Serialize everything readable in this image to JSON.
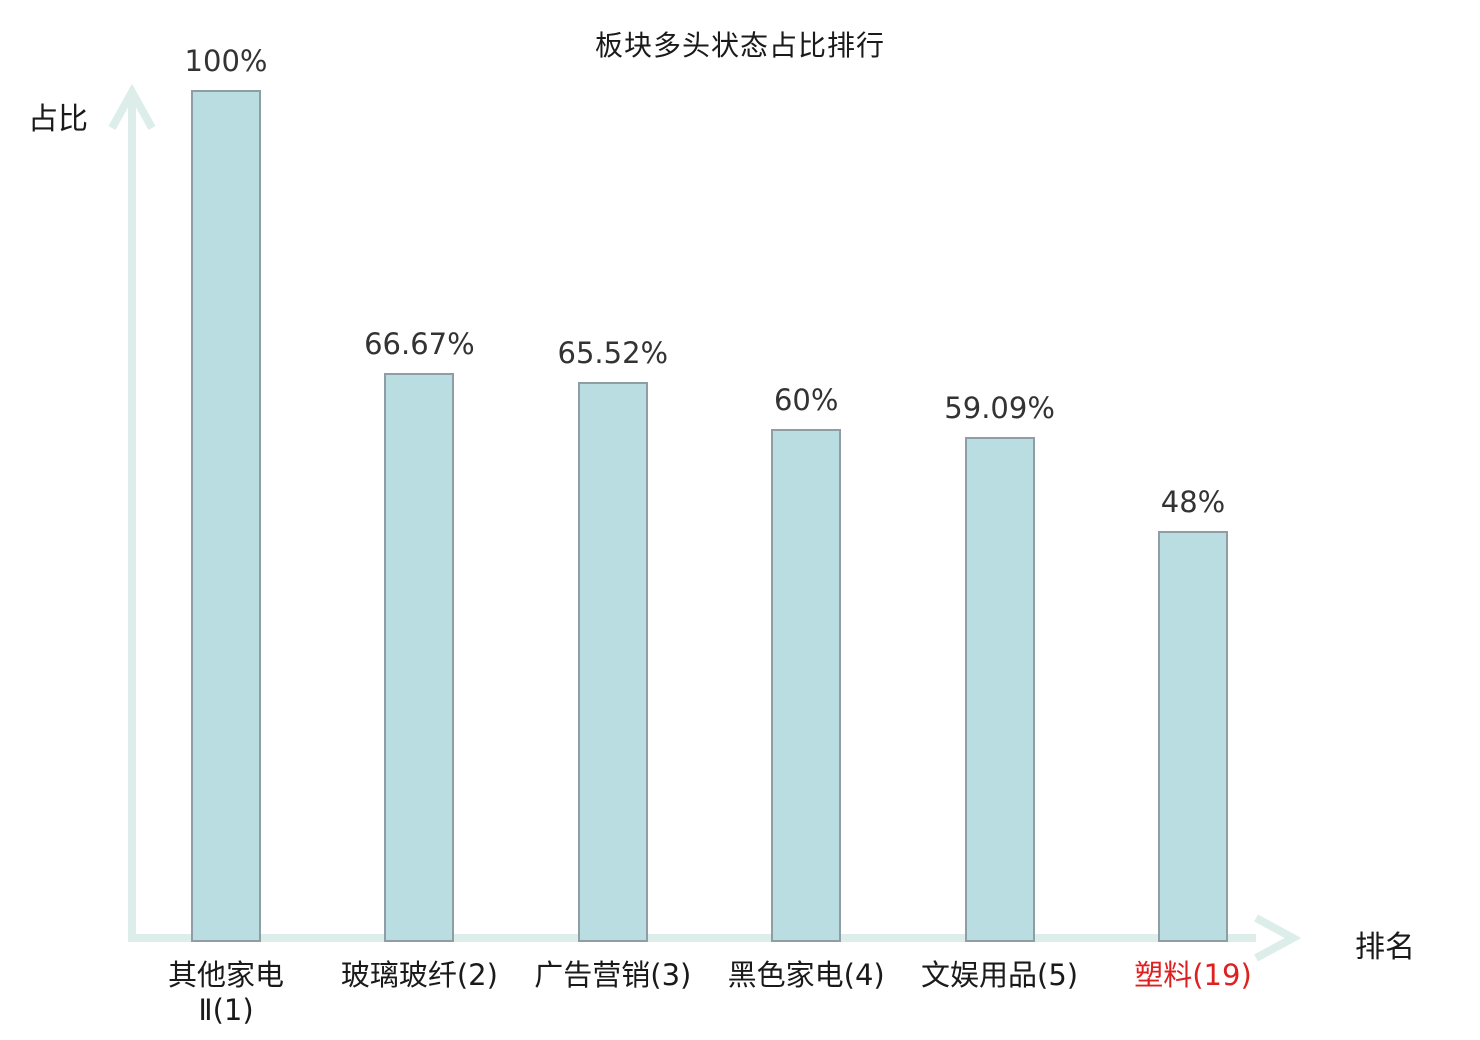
{
  "chart_data": {
    "type": "bar",
    "title": "板块多头状态占比排行",
    "xlabel": "排名",
    "ylabel": "占比",
    "categories": [
      "其他家电\nⅡ(1)",
      "玻璃玻纤(2)",
      "广告营销(3)",
      "黑色家电(4)",
      "文娱用品(5)",
      "塑料(19)"
    ],
    "values": [
      100,
      66.67,
      65.52,
      60,
      59.09,
      48
    ],
    "value_labels": [
      "100%",
      "66.67%",
      "65.52%",
      "60%",
      "59.09%",
      "48%"
    ],
    "ylim": [
      0,
      100
    ],
    "grid": false,
    "legend": "none",
    "highlight_index": 5,
    "colors": {
      "bar_fill": "#b9dde1",
      "bar_border": "#8f9ea4",
      "axis": "#ddeeea",
      "text": "#1a1a1a",
      "value_text": "#333333",
      "highlight_text": "#e02020",
      "background": "#ffffff"
    }
  }
}
